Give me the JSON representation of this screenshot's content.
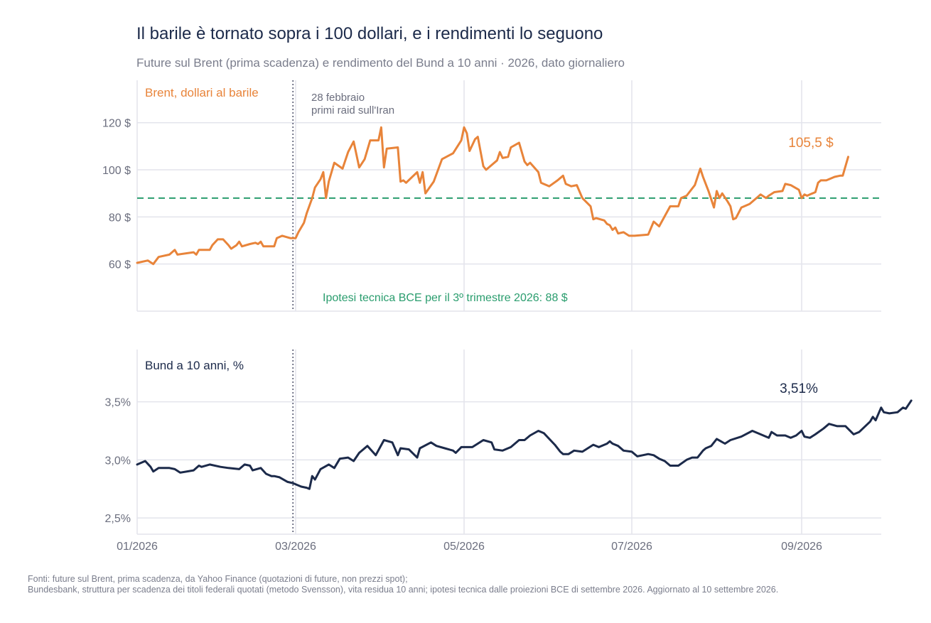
{
  "title": "Il barile è tornato sopra i 100 dollari, e i rendimenti lo seguono",
  "subtitle": "Future sul Brent (prima scadenza) e rendimento del Bund a 10 anni · 2026, dato giornaliero",
  "sources": [
    "Fonti: future sul Brent, prima scadenza, da Yahoo Finance (quotazioni di future, non prezzi spot);",
    "Bundesbank, struttura per scadenza dei titoli federali quotati (metodo Svensson), vita residua 10 anni; ipotesi tecnica dalle proiezioni BCE di settembre 2026. Aggiornato al 10 settembre 2026."
  ],
  "colors": {
    "brent": "#e8843a",
    "bund": "#1c2a4a",
    "reference": "#2a9d6e",
    "event": "#555870",
    "grid": "#e3e4ec",
    "text": "#6b6e7e"
  },
  "x_axis": {
    "ticks": [
      {
        "date": "2026-01-01",
        "label": "01/2026"
      },
      {
        "date": "2026-03-01",
        "label": "03/2026"
      },
      {
        "date": "2026-05-01",
        "label": "05/2026"
      },
      {
        "date": "2026-07-01",
        "label": "07/2026"
      },
      {
        "date": "2026-09-01",
        "label": "09/2026"
      }
    ],
    "range": [
      "2026-01-01",
      "2026-09-30"
    ]
  },
  "event": {
    "date": "2026-02-28",
    "label_line1": "28 febbraio",
    "label_line2": "primi raid sull'Iran"
  },
  "chart_data": [
    {
      "type": "line",
      "panel": "top",
      "series": [
        {
          "name": "Brent, dollari al barile"
        }
      ],
      "ylim": [
        40,
        138
      ],
      "yticks": [
        {
          "value": 60,
          "label": "60 $"
        },
        {
          "value": 80,
          "label": "80 $"
        },
        {
          "value": 100,
          "label": "100 $"
        },
        {
          "value": 120,
          "label": "120 $"
        }
      ],
      "reference_line": {
        "value": 88,
        "label": "Ipotesi tecnica BCE per il 3º trimestre 2026: 88 $"
      },
      "end_label": "105,5 $",
      "grid": true,
      "points": [
        [
          "2026-01-01",
          60.5
        ],
        [
          "2026-01-05",
          61.5
        ],
        [
          "2026-01-07",
          60.0
        ],
        [
          "2026-01-09",
          63.0
        ],
        [
          "2026-01-13",
          64.0
        ],
        [
          "2026-01-15",
          66.0
        ],
        [
          "2026-01-16",
          64.0
        ],
        [
          "2026-01-22",
          65.0
        ],
        [
          "2026-01-23",
          64.0
        ],
        [
          "2026-01-24",
          66.0
        ],
        [
          "2026-01-28",
          66.0
        ],
        [
          "2026-01-29",
          68.0
        ],
        [
          "2026-01-31",
          70.5
        ],
        [
          "2026-02-02",
          70.5
        ],
        [
          "2026-02-04",
          68.0
        ],
        [
          "2026-02-05",
          66.5
        ],
        [
          "2026-02-07",
          68.0
        ],
        [
          "2026-02-08",
          69.5
        ],
        [
          "2026-02-09",
          67.5
        ],
        [
          "2026-02-12",
          68.5
        ],
        [
          "2026-02-14",
          69.0
        ],
        [
          "2026-02-15",
          68.5
        ],
        [
          "2026-02-16",
          69.5
        ],
        [
          "2026-02-17",
          67.5
        ],
        [
          "2026-02-21",
          67.5
        ],
        [
          "2026-02-22",
          71.0
        ],
        [
          "2026-02-24",
          72.0
        ],
        [
          "2026-02-27",
          71.0
        ],
        [
          "2026-03-01",
          71.0
        ],
        [
          "2026-03-02",
          73.5
        ],
        [
          "2026-03-04",
          77.5
        ],
        [
          "2026-03-05",
          81.5
        ],
        [
          "2026-03-07",
          88.0
        ],
        [
          "2026-03-08",
          92.5
        ],
        [
          "2026-03-10",
          96.0
        ],
        [
          "2026-03-11",
          99.0
        ],
        [
          "2026-03-12",
          88.0
        ],
        [
          "2026-03-13",
          95.0
        ],
        [
          "2026-03-15",
          103.0
        ],
        [
          "2026-03-18",
          100.5
        ],
        [
          "2026-03-20",
          107.5
        ],
        [
          "2026-03-22",
          112.0
        ],
        [
          "2026-03-24",
          101.0
        ],
        [
          "2026-03-26",
          104.5
        ],
        [
          "2026-03-28",
          112.5
        ],
        [
          "2026-03-31",
          112.5
        ],
        [
          "2026-04-01",
          118.0
        ],
        [
          "2026-04-02",
          101.0
        ],
        [
          "2026-04-03",
          109.0
        ],
        [
          "2026-04-07",
          109.5
        ],
        [
          "2026-04-08",
          95.0
        ],
        [
          "2026-04-09",
          95.5
        ],
        [
          "2026-04-10",
          94.5
        ],
        [
          "2026-04-14",
          99.0
        ],
        [
          "2026-04-15",
          94.5
        ],
        [
          "2026-04-16",
          99.0
        ],
        [
          "2026-04-17",
          90.0
        ],
        [
          "2026-04-20",
          95.0
        ],
        [
          "2026-04-23",
          104.5
        ],
        [
          "2026-04-27",
          107.0
        ],
        [
          "2026-04-30",
          112.5
        ],
        [
          "2026-05-01",
          118.0
        ],
        [
          "2026-05-02",
          115.5
        ],
        [
          "2026-05-03",
          108.0
        ],
        [
          "2026-05-05",
          113.0
        ],
        [
          "2026-05-06",
          114.0
        ],
        [
          "2026-05-08",
          101.5
        ],
        [
          "2026-05-09",
          100.0
        ],
        [
          "2026-05-11",
          102.0
        ],
        [
          "2026-05-13",
          104.0
        ],
        [
          "2026-05-14",
          107.5
        ],
        [
          "2026-05-15",
          105.0
        ],
        [
          "2026-05-17",
          105.5
        ],
        [
          "2026-05-18",
          109.5
        ],
        [
          "2026-05-21",
          111.5
        ],
        [
          "2026-05-23",
          103.5
        ],
        [
          "2026-05-24",
          102.0
        ],
        [
          "2026-05-25",
          103.0
        ],
        [
          "2026-05-28",
          99.0
        ],
        [
          "2026-05-29",
          94.5
        ],
        [
          "2026-06-01",
          93.0
        ],
        [
          "2026-06-04",
          95.5
        ],
        [
          "2026-06-06",
          97.5
        ],
        [
          "2026-06-07",
          94.0
        ],
        [
          "2026-06-09",
          93.0
        ],
        [
          "2026-06-11",
          93.5
        ],
        [
          "2026-06-13",
          88.0
        ],
        [
          "2026-06-16",
          84.5
        ],
        [
          "2026-06-17",
          79.0
        ],
        [
          "2026-06-18",
          79.5
        ],
        [
          "2026-06-21",
          78.5
        ],
        [
          "2026-06-22",
          77.0
        ],
        [
          "2026-06-23",
          76.5
        ],
        [
          "2026-06-24",
          74.5
        ],
        [
          "2026-06-25",
          75.5
        ],
        [
          "2026-06-26",
          73.0
        ],
        [
          "2026-06-28",
          73.5
        ],
        [
          "2026-06-30",
          72.0
        ],
        [
          "2026-07-02",
          72.0
        ],
        [
          "2026-07-07",
          72.5
        ],
        [
          "2026-07-09",
          78.0
        ],
        [
          "2026-07-11",
          76.0
        ],
        [
          "2026-07-15",
          84.5
        ],
        [
          "2026-07-18",
          84.5
        ],
        [
          "2026-07-19",
          88.0
        ],
        [
          "2026-07-21",
          89.0
        ],
        [
          "2026-07-24",
          93.5
        ],
        [
          "2026-07-26",
          100.5
        ],
        [
          "2026-07-27",
          97.0
        ],
        [
          "2026-07-29",
          91.0
        ],
        [
          "2026-07-31",
          84.0
        ],
        [
          "2026-08-01",
          91.0
        ],
        [
          "2026-08-02",
          88.0
        ],
        [
          "2026-08-03",
          90.0
        ],
        [
          "2026-08-05",
          86.5
        ],
        [
          "2026-08-06",
          84.5
        ],
        [
          "2026-08-07",
          79.0
        ],
        [
          "2026-08-08",
          79.5
        ],
        [
          "2026-08-10",
          84.0
        ],
        [
          "2026-08-13",
          85.5
        ],
        [
          "2026-08-16",
          88.5
        ],
        [
          "2026-08-17",
          89.5
        ],
        [
          "2026-08-19",
          88.0
        ],
        [
          "2026-08-20",
          89.0
        ],
        [
          "2026-08-22",
          90.5
        ],
        [
          "2026-08-25",
          91.0
        ],
        [
          "2026-08-26",
          94.0
        ],
        [
          "2026-08-28",
          93.5
        ],
        [
          "2026-08-31",
          91.5
        ],
        [
          "2026-09-01",
          88.0
        ],
        [
          "2026-09-02",
          89.5
        ],
        [
          "2026-09-03",
          89.0
        ],
        [
          "2026-09-04",
          89.5
        ],
        [
          "2026-09-06",
          90.5
        ],
        [
          "2026-09-07",
          94.5
        ],
        [
          "2026-09-08",
          95.5
        ],
        [
          "2026-09-10",
          95.5
        ],
        [
          "2026-09-13",
          97.0
        ],
        [
          "2026-09-15",
          97.5
        ],
        [
          "2026-09-16",
          97.5
        ],
        [
          "2026-09-18",
          105.5
        ]
      ]
    },
    {
      "type": "line",
      "panel": "bottom",
      "series": [
        {
          "name": "Bund a 10 anni, %"
        }
      ],
      "ylim": [
        2.36,
        3.95
      ],
      "yticks": [
        {
          "value": 2.5,
          "label": "2,5%"
        },
        {
          "value": 3.0,
          "label": "3,0%"
        },
        {
          "value": 3.5,
          "label": "3,5%"
        }
      ],
      "end_label": "3,51%",
      "grid": true,
      "points": [
        [
          "2026-01-01",
          2.96
        ],
        [
          "2026-01-04",
          2.99
        ],
        [
          "2026-01-06",
          2.94
        ],
        [
          "2026-01-07",
          2.9
        ],
        [
          "2026-01-09",
          2.93
        ],
        [
          "2026-01-13",
          2.93
        ],
        [
          "2026-01-15",
          2.92
        ],
        [
          "2026-01-17",
          2.89
        ],
        [
          "2026-01-22",
          2.91
        ],
        [
          "2026-01-24",
          2.95
        ],
        [
          "2026-01-25",
          2.94
        ],
        [
          "2026-01-28",
          2.96
        ],
        [
          "2026-02-01",
          2.94
        ],
        [
          "2026-02-04",
          2.93
        ],
        [
          "2026-02-08",
          2.92
        ],
        [
          "2026-02-10",
          2.96
        ],
        [
          "2026-02-12",
          2.95
        ],
        [
          "2026-02-13",
          2.91
        ],
        [
          "2026-02-16",
          2.93
        ],
        [
          "2026-02-18",
          2.88
        ],
        [
          "2026-02-20",
          2.86
        ],
        [
          "2026-02-21",
          2.86
        ],
        [
          "2026-02-23",
          2.85
        ],
        [
          "2026-02-26",
          2.81
        ],
        [
          "2026-02-28",
          2.8
        ],
        [
          "2026-03-01",
          2.79
        ],
        [
          "2026-03-03",
          2.77
        ],
        [
          "2026-03-05",
          2.76
        ],
        [
          "2026-03-06",
          2.75
        ],
        [
          "2026-03-07",
          2.86
        ],
        [
          "2026-03-08",
          2.83
        ],
        [
          "2026-03-10",
          2.92
        ],
        [
          "2026-03-13",
          2.96
        ],
        [
          "2026-03-15",
          2.93
        ],
        [
          "2026-03-17",
          3.01
        ],
        [
          "2026-03-20",
          3.02
        ],
        [
          "2026-03-22",
          2.99
        ],
        [
          "2026-03-24",
          3.06
        ],
        [
          "2026-03-27",
          3.12
        ],
        [
          "2026-03-30",
          3.04
        ],
        [
          "2026-04-02",
          3.17
        ],
        [
          "2026-04-05",
          3.15
        ],
        [
          "2026-04-07",
          3.04
        ],
        [
          "2026-04-08",
          3.1
        ],
        [
          "2026-04-11",
          3.09
        ],
        [
          "2026-04-14",
          3.02
        ],
        [
          "2026-04-15",
          3.1
        ],
        [
          "2026-04-19",
          3.15
        ],
        [
          "2026-04-21",
          3.12
        ],
        [
          "2026-04-24",
          3.1
        ],
        [
          "2026-04-27",
          3.08
        ],
        [
          "2026-04-28",
          3.06
        ],
        [
          "2026-04-30",
          3.11
        ],
        [
          "2026-05-04",
          3.11
        ],
        [
          "2026-05-06",
          3.14
        ],
        [
          "2026-05-08",
          3.17
        ],
        [
          "2026-05-11",
          3.15
        ],
        [
          "2026-05-12",
          3.09
        ],
        [
          "2026-05-15",
          3.08
        ],
        [
          "2026-05-18",
          3.11
        ],
        [
          "2026-05-21",
          3.17
        ],
        [
          "2026-05-23",
          3.17
        ],
        [
          "2026-05-25",
          3.21
        ],
        [
          "2026-05-28",
          3.25
        ],
        [
          "2026-05-30",
          3.23
        ],
        [
          "2026-06-01",
          3.18
        ],
        [
          "2026-06-03",
          3.13
        ],
        [
          "2026-06-05",
          3.07
        ],
        [
          "2026-06-06",
          3.05
        ],
        [
          "2026-06-08",
          3.05
        ],
        [
          "2026-06-10",
          3.08
        ],
        [
          "2026-06-13",
          3.07
        ],
        [
          "2026-06-15",
          3.1
        ],
        [
          "2026-06-17",
          3.13
        ],
        [
          "2026-06-19",
          3.11
        ],
        [
          "2026-06-22",
          3.14
        ],
        [
          "2026-06-23",
          3.16
        ],
        [
          "2026-06-24",
          3.14
        ],
        [
          "2026-06-26",
          3.12
        ],
        [
          "2026-06-28",
          3.08
        ],
        [
          "2026-07-01",
          3.07
        ],
        [
          "2026-07-03",
          3.03
        ],
        [
          "2026-07-05",
          3.04
        ],
        [
          "2026-07-07",
          3.05
        ],
        [
          "2026-07-09",
          3.04
        ],
        [
          "2026-07-11",
          3.01
        ],
        [
          "2026-07-13",
          2.99
        ],
        [
          "2026-07-15",
          2.95
        ],
        [
          "2026-07-18",
          2.95
        ],
        [
          "2026-07-21",
          3.0
        ],
        [
          "2026-07-23",
          3.02
        ],
        [
          "2026-07-25",
          3.02
        ],
        [
          "2026-07-27",
          3.08
        ],
        [
          "2026-07-28",
          3.1
        ],
        [
          "2026-07-30",
          3.12
        ],
        [
          "2026-08-01",
          3.18
        ],
        [
          "2026-08-04",
          3.14
        ],
        [
          "2026-08-06",
          3.17
        ],
        [
          "2026-08-10",
          3.2
        ],
        [
          "2026-08-14",
          3.25
        ],
        [
          "2026-08-18",
          3.21
        ],
        [
          "2026-08-20",
          3.19
        ],
        [
          "2026-08-21",
          3.24
        ],
        [
          "2026-08-23",
          3.21
        ],
        [
          "2026-08-26",
          3.21
        ],
        [
          "2026-08-28",
          3.19
        ],
        [
          "2026-08-30",
          3.21
        ],
        [
          "2026-09-01",
          3.25
        ],
        [
          "2026-09-02",
          3.2
        ],
        [
          "2026-09-04",
          3.19
        ],
        [
          "2026-09-06",
          3.22
        ],
        [
          "2026-09-09",
          3.27
        ],
        [
          "2026-09-11",
          3.31
        ],
        [
          "2026-09-14",
          3.29
        ],
        [
          "2026-09-17",
          3.29
        ],
        [
          "2026-09-20",
          3.22
        ],
        [
          "2026-09-22",
          3.24
        ],
        [
          "2026-09-26",
          3.33
        ],
        [
          "2026-09-27",
          3.37
        ],
        [
          "2026-09-28",
          3.34
        ],
        [
          "2026-09-30",
          3.45
        ],
        [
          "2026-10-01",
          3.41
        ],
        [
          "2026-10-03",
          3.4
        ],
        [
          "2026-10-06",
          3.41
        ],
        [
          "2026-10-08",
          3.45
        ],
        [
          "2026-10-09",
          3.44
        ],
        [
          "2026-10-11",
          3.51
        ]
      ]
    }
  ]
}
